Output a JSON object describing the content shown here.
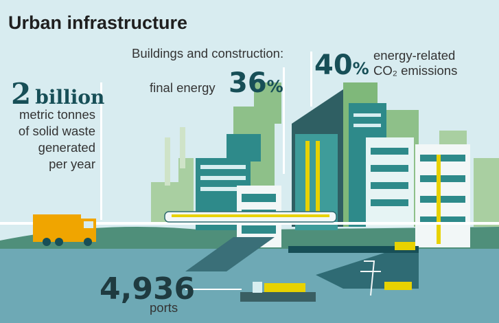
{
  "title": "Urban infrastructure",
  "waste": {
    "number": "2",
    "unit": "billion",
    "lines": [
      "metric tonnes",
      "of solid waste",
      "generated",
      "per year"
    ]
  },
  "buildings": {
    "label": "Buildings and construction:",
    "final_energy_label": "final energy",
    "final_energy_value": "36",
    "co2_value": "40",
    "percent_sign": "%",
    "co2_label_line1": "energy-related",
    "co2_label_line2": "CO₂ emissions"
  },
  "ports": {
    "number": "4,936",
    "label": "ports"
  },
  "colors": {
    "sky": "#d8ecf0",
    "water": "#6ea9b5",
    "ground": "#4f8f7a",
    "teal_dark": "#174f57",
    "truck": "#f0a500",
    "yellow": "#e8d200"
  }
}
